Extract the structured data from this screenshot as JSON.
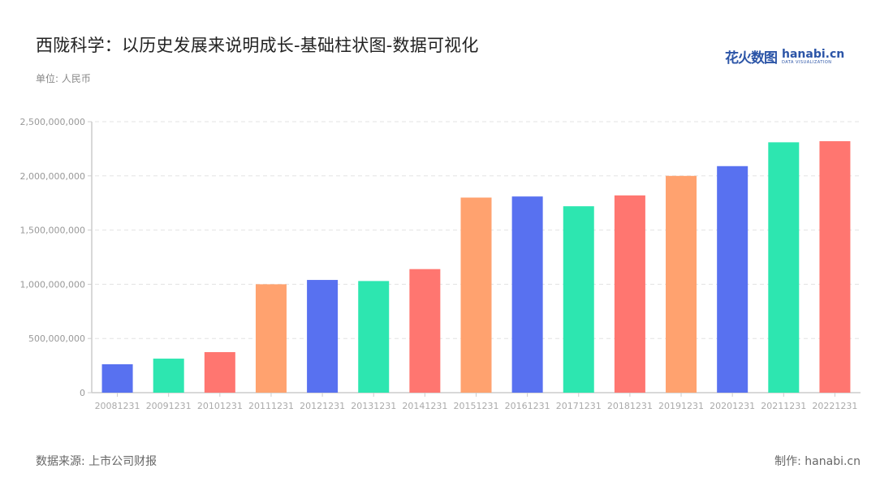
{
  "header": {
    "title": "西陇科学：以历史发展来说明成长-基础柱状图-数据可视化",
    "unit": "单位: 人民币"
  },
  "logo": {
    "cn": "花火数图",
    "en": "hanabi.cn",
    "sub": "DATA VISUALIZATION"
  },
  "footer": {
    "source": "数据来源: 上市公司财报",
    "credit": "制作: hanabi.cn"
  },
  "colors": [
    "#5871f0",
    "#2de6b0",
    "#ff7670",
    "#ffa26f"
  ],
  "chart_data": {
    "type": "bar",
    "title": "西陇科学：以历史发展来说明成长-基础柱状图-数据可视化",
    "xlabel": "",
    "ylabel": "单位: 人民币",
    "ylim": [
      0,
      2500000000
    ],
    "yticks": [
      0,
      500000000,
      1000000000,
      1500000000,
      2000000000,
      2500000000
    ],
    "ytick_labels": [
      "0",
      "500,000,000",
      "1,000,000,000",
      "1,500,000,000",
      "2,000,000,000",
      "2,500,000,000"
    ],
    "grid": "horizontal dashed",
    "legend": "none",
    "categories": [
      "20081231",
      "20091231",
      "20101231",
      "20111231",
      "20121231",
      "20131231",
      "20141231",
      "20151231",
      "20161231",
      "20171231",
      "20181231",
      "20191231",
      "20201231",
      "20211231",
      "20221231"
    ],
    "values": [
      262000000,
      314000000,
      374000000,
      1000000000,
      1040000000,
      1030000000,
      1140000000,
      1800000000,
      1810000000,
      1720000000,
      1820000000,
      2000000000,
      2090000000,
      2310000000,
      2320000000
    ]
  }
}
